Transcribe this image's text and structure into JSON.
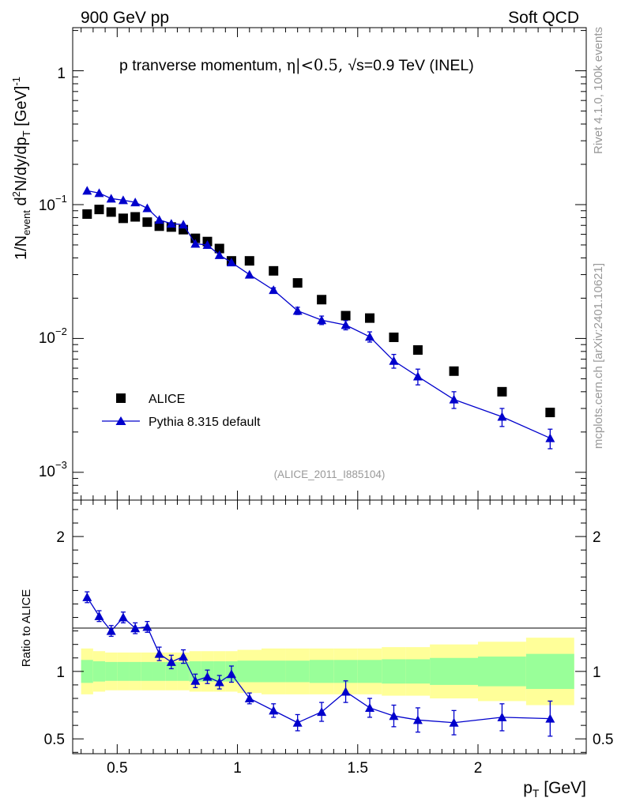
{
  "header": {
    "left_label": "900 GeV pp",
    "right_label": "Soft QCD"
  },
  "side_labels": {
    "rivet": "Rivet 4.1.0,  100k events",
    "mcplots": "mcplots.cern.ch [arXiv:2401.10621]"
  },
  "chart_data": [
    {
      "type": "scatter",
      "panel": "main",
      "title": "p tranverse momentum, |η|<0.5, √s=0.9 TeV (INEL)",
      "title_parts": {
        "prefix": "p tranverse momentum, ",
        "eta_cut": "η|<0.5, ",
        "energy": "s=0.9 TeV (INEL)"
      },
      "ylabel": "1/N_event d²N/dy/dp_T [GeV]⁻¹",
      "ylabel_parts": {
        "p1": "1/N",
        "sub1": "event",
        "p2": " d",
        "sup2": "2",
        "p3": "N/dy/dp",
        "sub3": "T",
        "p4": " [GeV]",
        "sup4": "-1"
      },
      "yscale": "log",
      "ylim": [
        0.00062,
        2.1
      ],
      "xlim": [
        0.315,
        2.45
      ],
      "y_tick_labels": {
        "t1": {
          "base": "1",
          "exp": ""
        },
        "t2": {
          "base": "10",
          "exp": "−1"
        },
        "t3": {
          "base": "10",
          "exp": "−2"
        },
        "t4": {
          "base": "10",
          "exp": "−3"
        }
      },
      "watermark": "(ALICE_2011_I885104)",
      "legend_position": "lower-left",
      "series": [
        {
          "name": "ALICE",
          "marker": "square",
          "color": "#000000",
          "x": [
            0.375,
            0.425,
            0.475,
            0.525,
            0.575,
            0.625,
            0.675,
            0.725,
            0.775,
            0.825,
            0.875,
            0.925,
            0.975,
            1.05,
            1.15,
            1.25,
            1.35,
            1.45,
            1.55,
            1.65,
            1.75,
            1.9,
            2.1,
            2.3
          ],
          "y": [
            0.085,
            0.092,
            0.088,
            0.079,
            0.081,
            0.074,
            0.069,
            0.068,
            0.065,
            0.056,
            0.053,
            0.047,
            0.038,
            0.038,
            0.032,
            0.026,
            0.0195,
            0.0148,
            0.0142,
            0.0102,
            0.0082,
            0.0057,
            0.004,
            0.0028
          ]
        },
        {
          "name": "Pythia 8.315 default",
          "marker": "triangle",
          "color": "#0000cc",
          "x": [
            0.375,
            0.425,
            0.475,
            0.525,
            0.575,
            0.625,
            0.675,
            0.725,
            0.775,
            0.825,
            0.875,
            0.925,
            0.975,
            1.05,
            1.15,
            1.25,
            1.35,
            1.45,
            1.55,
            1.65,
            1.75,
            1.9,
            2.1,
            2.3
          ],
          "y": [
            0.127,
            0.122,
            0.111,
            0.108,
            0.104,
            0.094,
            0.077,
            0.072,
            0.071,
            0.051,
            0.05,
            0.042,
            0.037,
            0.03,
            0.023,
            0.0161,
            0.0137,
            0.0126,
            0.0103,
            0.0068,
            0.0052,
            0.0035,
            0.0026,
            0.0018
          ],
          "y_err": [
            0,
            0,
            0,
            0,
            0,
            0,
            0,
            0,
            0,
            0,
            0,
            0,
            0,
            0,
            0.0009,
            0.001,
            0.001,
            0.001,
            0.0009,
            0.0008,
            0.0007,
            0.0005,
            0.0004,
            0.0003
          ]
        }
      ]
    },
    {
      "type": "line",
      "panel": "ratio",
      "ylabel": "Ratio to ALICE",
      "xlabel_parts": {
        "p": "p",
        "sub": "T",
        "unit": " [GeV]"
      },
      "ylim": [
        0.39,
        2.27
      ],
      "xlim": [
        0.315,
        2.45
      ],
      "x_ticks": [
        0.5,
        1,
        1.5,
        2
      ],
      "x_tick_labels": [
        "0.5",
        "1",
        "1.5",
        "2"
      ],
      "y_ticks": [
        0.5,
        1,
        2
      ],
      "y_tick_labels": [
        "0.5",
        "1",
        "2"
      ],
      "bands": {
        "bin_edges": [
          0.35,
          0.4,
          0.45,
          0.5,
          0.55,
          0.6,
          0.65,
          0.7,
          0.75,
          0.8,
          0.85,
          0.9,
          0.95,
          1.0,
          1.1,
          1.2,
          1.3,
          1.4,
          1.5,
          1.6,
          1.7,
          1.8,
          2.0,
          2.2,
          2.4
        ],
        "inner_halfwidth": [
          0.085,
          0.075,
          0.07,
          0.07,
          0.07,
          0.07,
          0.07,
          0.07,
          0.07,
          0.075,
          0.075,
          0.075,
          0.075,
          0.08,
          0.08,
          0.08,
          0.085,
          0.085,
          0.085,
          0.09,
          0.09,
          0.1,
          0.11,
          0.13
        ],
        "outer_halfwidth": [
          0.17,
          0.15,
          0.14,
          0.14,
          0.14,
          0.14,
          0.14,
          0.14,
          0.14,
          0.15,
          0.15,
          0.15,
          0.15,
          0.16,
          0.17,
          0.17,
          0.17,
          0.17,
          0.17,
          0.18,
          0.18,
          0.2,
          0.22,
          0.25
        ],
        "inner_color": "#99ff99",
        "outer_color": "#ffff99"
      },
      "series": [
        {
          "name": "Pythia 8.315 default / ALICE",
          "color": "#0000cc",
          "x": [
            0.375,
            0.425,
            0.475,
            0.525,
            0.575,
            0.625,
            0.675,
            0.725,
            0.775,
            0.825,
            0.875,
            0.925,
            0.975,
            1.05,
            1.15,
            1.25,
            1.35,
            1.45,
            1.55,
            1.65,
            1.75,
            1.9,
            2.1,
            2.3
          ],
          "y": [
            1.55,
            1.41,
            1.3,
            1.4,
            1.32,
            1.33,
            1.13,
            1.07,
            1.11,
            0.93,
            0.96,
            0.92,
            0.98,
            0.8,
            0.71,
            0.62,
            0.7,
            0.85,
            0.73,
            0.67,
            0.64,
            0.62,
            0.66,
            0.65
          ],
          "y_err": [
            0.04,
            0.04,
            0.04,
            0.04,
            0.04,
            0.04,
            0.05,
            0.05,
            0.05,
            0.05,
            0.05,
            0.05,
            0.06,
            0.04,
            0.05,
            0.06,
            0.07,
            0.08,
            0.07,
            0.08,
            0.09,
            0.09,
            0.1,
            0.13
          ]
        }
      ]
    }
  ]
}
